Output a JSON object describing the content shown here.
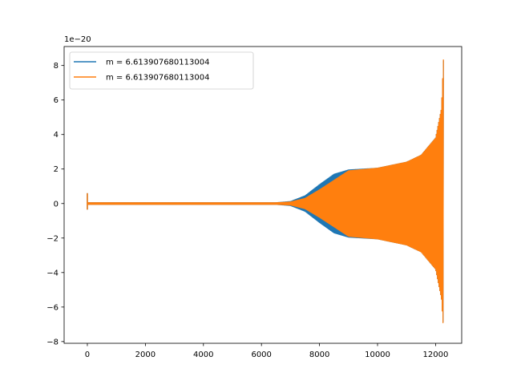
{
  "chart_data": {
    "type": "line",
    "title": "",
    "xlabel": "",
    "ylabel": "",
    "y_offset_text": "1e−20",
    "xlim": [
      -800,
      12900
    ],
    "ylim": [
      -8.1,
      9.1
    ],
    "y_scale_multiplier": 1e-20,
    "x_ticks": [
      0,
      2000,
      4000,
      6000,
      8000,
      10000,
      12000
    ],
    "x_tick_labels": [
      "0",
      "2000",
      "4000",
      "6000",
      "8000",
      "10000",
      "12000"
    ],
    "y_ticks": [
      -8,
      -6,
      -4,
      -2,
      0,
      2,
      4,
      6,
      8
    ],
    "y_tick_labels": [
      "−8",
      "−6",
      "−4",
      "−2",
      "0",
      "2",
      "4",
      "6",
      "8"
    ],
    "grid": false,
    "legend_position": "upper-left",
    "series": [
      {
        "name": "m = 6.613907680113004",
        "color": "#1f77b4",
        "envelope_x": [
          0,
          6500,
          7000,
          7500,
          8000,
          8500,
          9000,
          10000,
          11000,
          11500,
          12000,
          12200,
          12270
        ],
        "envelope_upper": [
          0.05,
          0.05,
          0.12,
          0.45,
          1.1,
          1.7,
          1.95,
          2.05,
          2.4,
          2.8,
          3.8,
          5.5,
          8.3
        ],
        "envelope_lower": [
          -0.05,
          -0.05,
          -0.12,
          -0.45,
          -1.1,
          -1.7,
          -1.95,
          -2.05,
          -2.4,
          -2.8,
          -3.8,
          -5.5,
          -7.2
        ]
      },
      {
        "name": "m = 6.613907680113004",
        "color": "#ff7f0e",
        "envelope_x": [
          0,
          6500,
          7000,
          7500,
          8000,
          8500,
          9000,
          10000,
          11000,
          11500,
          12000,
          12200,
          12270
        ],
        "envelope_upper": [
          0.05,
          0.05,
          0.09,
          0.3,
          0.8,
          1.35,
          1.9,
          2.05,
          2.4,
          2.8,
          3.8,
          5.5,
          8.35
        ],
        "envelope_lower": [
          -0.05,
          -0.05,
          -0.09,
          -0.3,
          -0.8,
          -1.35,
          -1.9,
          -2.05,
          -2.4,
          -2.8,
          -3.8,
          -5.5,
          -7.25
        ]
      }
    ],
    "spike_at_start": {
      "x": 0,
      "max": 0.6,
      "min": -0.35
    }
  }
}
